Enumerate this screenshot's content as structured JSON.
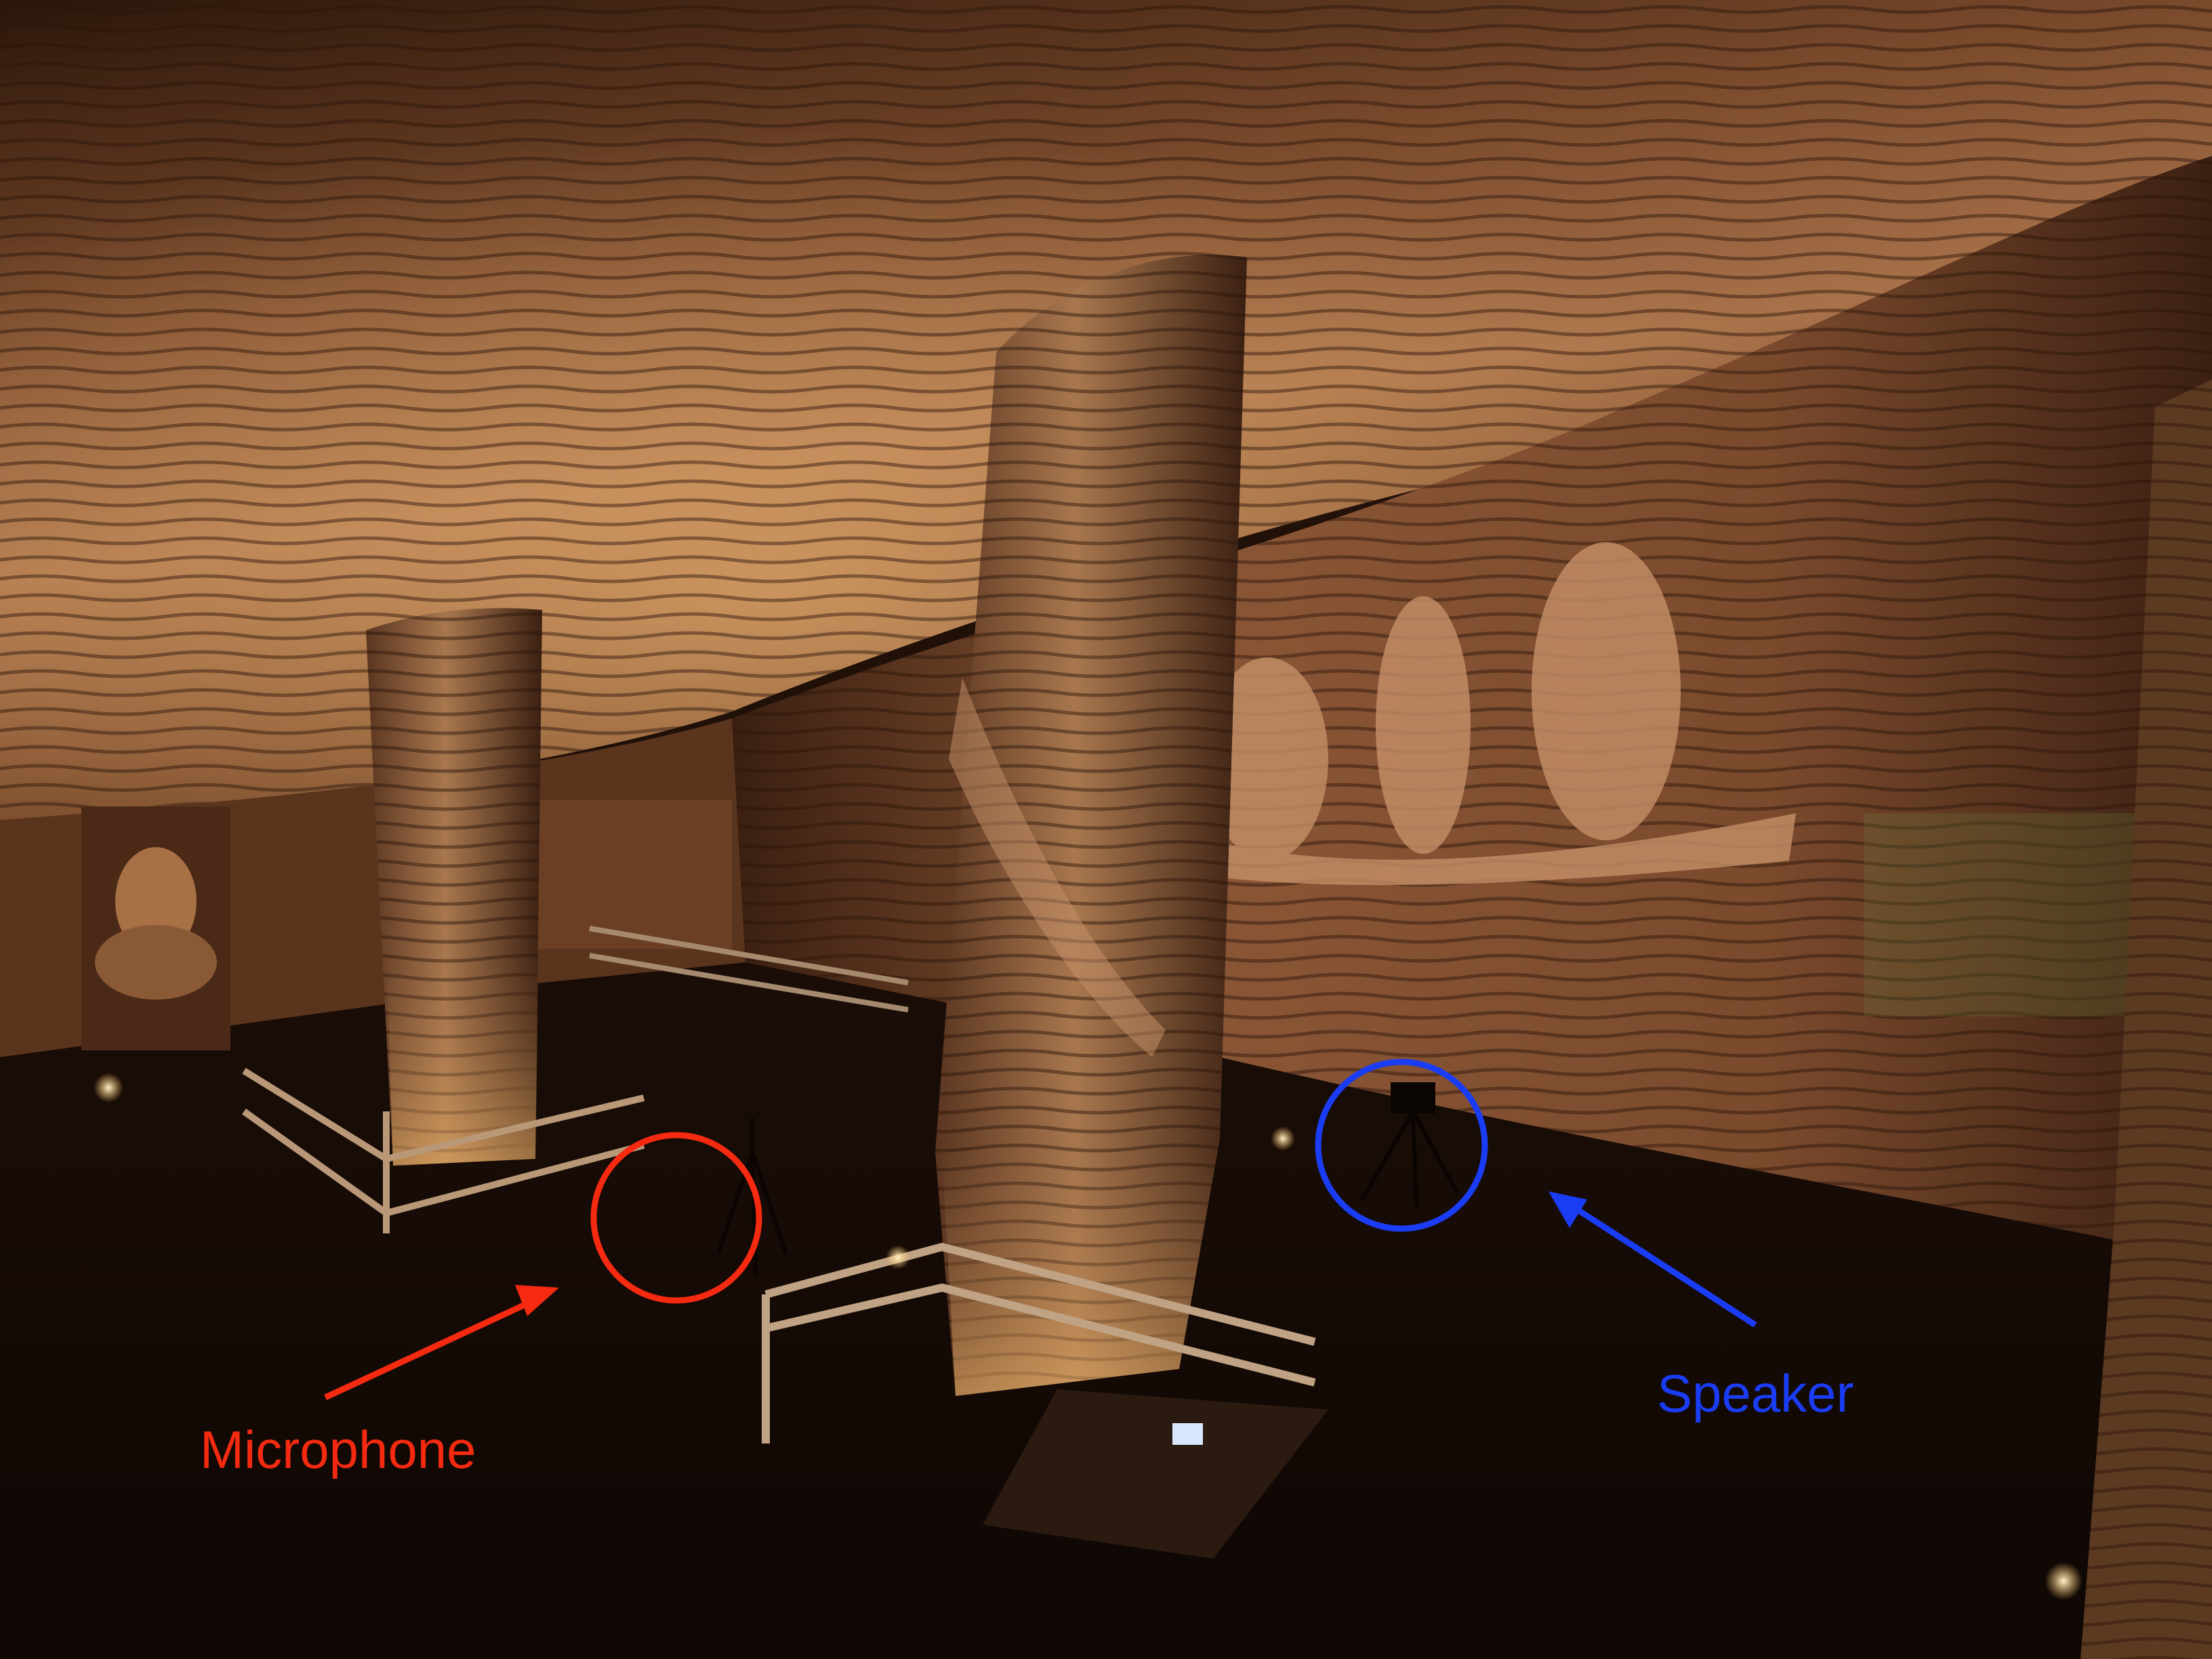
{
  "photo": {
    "scene": "underground cave hall with carved stone pillars and wall reliefs"
  },
  "annotations": {
    "microphone": {
      "label": "Microphone",
      "color": "#f62a10"
    },
    "speaker": {
      "label": "Speaker",
      "color": "#1a3cf5"
    }
  },
  "palette": {
    "ceiling_light": "#a9724a",
    "ceiling_dark": "#1a0d06",
    "wall_lit": "#8a5636",
    "floor": "#1f0f08",
    "pillar_lit": "#9b6a45"
  }
}
